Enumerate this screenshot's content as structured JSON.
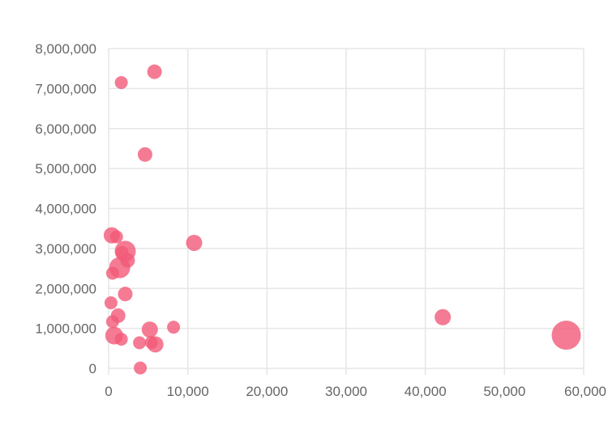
{
  "chart_data": {
    "type": "scatter",
    "title": "",
    "xlabel": "",
    "ylabel": "",
    "xlim": [
      0,
      60000
    ],
    "ylim": [
      0,
      8000000
    ],
    "x_ticks": [
      "0",
      "10,000",
      "20,000",
      "30,000",
      "40,000",
      "50,000",
      "60,000"
    ],
    "y_ticks": [
      "0",
      "1,000,000",
      "2,000,000",
      "3,000,000",
      "4,000,000",
      "5,000,000",
      "6,000,000",
      "7,000,000",
      "8,000,000"
    ],
    "grid": true,
    "legend": false,
    "color": "#f15a78",
    "points": [
      {
        "x": 1600,
        "y": 7150000,
        "size": 8
      },
      {
        "x": 5800,
        "y": 7420000,
        "size": 9
      },
      {
        "x": 4600,
        "y": 5350000,
        "size": 9
      },
      {
        "x": 10800,
        "y": 3140000,
        "size": 10
      },
      {
        "x": 400,
        "y": 3330000,
        "size": 10
      },
      {
        "x": 1000,
        "y": 3290000,
        "size": 8
      },
      {
        "x": 2100,
        "y": 2930000,
        "size": 13
      },
      {
        "x": 1700,
        "y": 2900000,
        "size": 8
      },
      {
        "x": 2400,
        "y": 2700000,
        "size": 9
      },
      {
        "x": 1400,
        "y": 2520000,
        "size": 13
      },
      {
        "x": 500,
        "y": 2380000,
        "size": 8
      },
      {
        "x": 2100,
        "y": 1860000,
        "size": 9
      },
      {
        "x": 300,
        "y": 1640000,
        "size": 8
      },
      {
        "x": 1200,
        "y": 1320000,
        "size": 9
      },
      {
        "x": 500,
        "y": 1170000,
        "size": 8
      },
      {
        "x": 700,
        "y": 820000,
        "size": 11
      },
      {
        "x": 1600,
        "y": 730000,
        "size": 8
      },
      {
        "x": 5200,
        "y": 970000,
        "size": 10
      },
      {
        "x": 8200,
        "y": 1030000,
        "size": 8
      },
      {
        "x": 3900,
        "y": 640000,
        "size": 8
      },
      {
        "x": 5400,
        "y": 650000,
        "size": 8
      },
      {
        "x": 5900,
        "y": 600000,
        "size": 10
      },
      {
        "x": 4000,
        "y": 10000,
        "size": 8
      },
      {
        "x": 42200,
        "y": 1280000,
        "size": 10
      },
      {
        "x": 57800,
        "y": 830000,
        "size": 18
      }
    ]
  }
}
